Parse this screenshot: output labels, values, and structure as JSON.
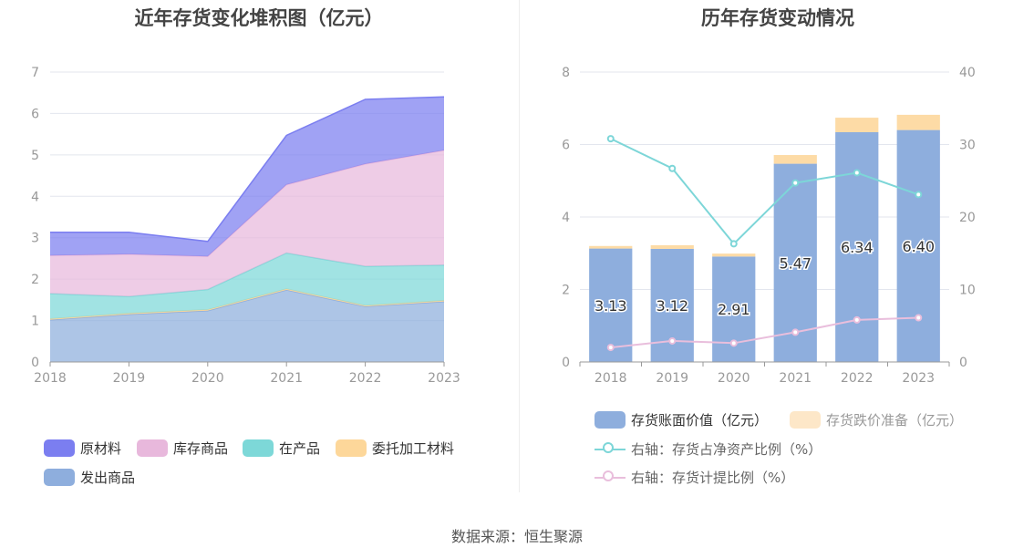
{
  "source": "数据来源：恒生聚源",
  "left": {
    "title": "近年存货变化堆积图（亿元）",
    "legend": [
      {
        "label": "原材料",
        "color": "#7b7ef0"
      },
      {
        "label": "库存商品",
        "color": "#e8b8dc"
      },
      {
        "label": "在产品",
        "color": "#7dd8d8"
      },
      {
        "label": "委托加工材料",
        "color": "#fdd79a"
      },
      {
        "label": "发出商品",
        "color": "#8eaedd"
      }
    ]
  },
  "right": {
    "title": "历年存货变动情况",
    "legend": [
      {
        "label": "存货账面价值（亿元）",
        "color": "#8eaedd"
      },
      {
        "label": "存货跌价准备（亿元）",
        "color": "#fde7c8"
      },
      {
        "label": "右轴：存货占净资产比例（%）",
        "color": "#7dd6d8"
      },
      {
        "label": "右轴：存货计提比例（%）",
        "color": "#e9bedc"
      }
    ]
  },
  "chart_data": [
    {
      "type": "area",
      "title": "近年存货变化堆积图（亿元）",
      "stacked": true,
      "x": [
        "2018",
        "2019",
        "2020",
        "2021",
        "2022",
        "2023"
      ],
      "ylim": [
        0,
        7
      ],
      "yticks": [
        "0",
        "1",
        "2",
        "3",
        "4",
        "5",
        "6",
        "7"
      ],
      "grid": true,
      "legend_position": "bottom",
      "series": [
        {
          "name": "发出商品",
          "color": "#8eaedd",
          "values": [
            1.02,
            1.15,
            1.24,
            1.74,
            1.34,
            1.46
          ]
        },
        {
          "name": "委托加工材料",
          "color": "#fdd79a",
          "values": [
            0.02,
            0.02,
            0.02,
            0.02,
            0.02,
            0.02
          ]
        },
        {
          "name": "在产品",
          "color": "#7dd8d8",
          "values": [
            0.61,
            0.41,
            0.49,
            0.87,
            0.95,
            0.86
          ]
        },
        {
          "name": "库存商品",
          "color": "#e8b8dc",
          "values": [
            0.92,
            1.02,
            0.8,
            1.65,
            2.47,
            2.77
          ]
        },
        {
          "name": "原材料",
          "color": "#7b7ef0",
          "values": [
            0.56,
            0.53,
            0.36,
            1.19,
            1.56,
            1.29
          ]
        }
      ]
    },
    {
      "type": "bar",
      "title": "历年存货变动情况",
      "categories": [
        "2018",
        "2019",
        "2020",
        "2021",
        "2022",
        "2023"
      ],
      "stacked": true,
      "ylim": [
        0,
        8
      ],
      "yticks": [
        "0",
        "2",
        "4",
        "6",
        "8"
      ],
      "y2lim": [
        0,
        40
      ],
      "y2ticks": [
        "0",
        "10",
        "20",
        "30",
        "40"
      ],
      "grid": true,
      "legend_position": "bottom",
      "series": [
        {
          "name": "存货账面价值（亿元）",
          "type": "bar",
          "axis": "left",
          "color": "#8eaedd",
          "values": [
            3.13,
            3.12,
            2.91,
            5.47,
            6.34,
            6.4
          ],
          "labels": [
            "3.13",
            "3.12",
            "2.91",
            "5.47",
            "6.34",
            "6.40"
          ]
        },
        {
          "name": "存货跌价准备（亿元）",
          "type": "bar",
          "axis": "left",
          "color": "#fddba6",
          "values": [
            0.07,
            0.1,
            0.08,
            0.24,
            0.4,
            0.42
          ]
        },
        {
          "name": "右轴：存货占净资产比例（%）",
          "type": "line",
          "axis": "right",
          "color": "#7dd6d8",
          "values": [
            30.8,
            26.7,
            16.3,
            24.7,
            26.1,
            23.1
          ]
        },
        {
          "name": "右轴：存货计提比例（%）",
          "type": "line",
          "axis": "right",
          "color": "#e9bedc",
          "values": [
            2.0,
            2.9,
            2.6,
            4.1,
            5.8,
            6.1
          ]
        }
      ]
    }
  ]
}
